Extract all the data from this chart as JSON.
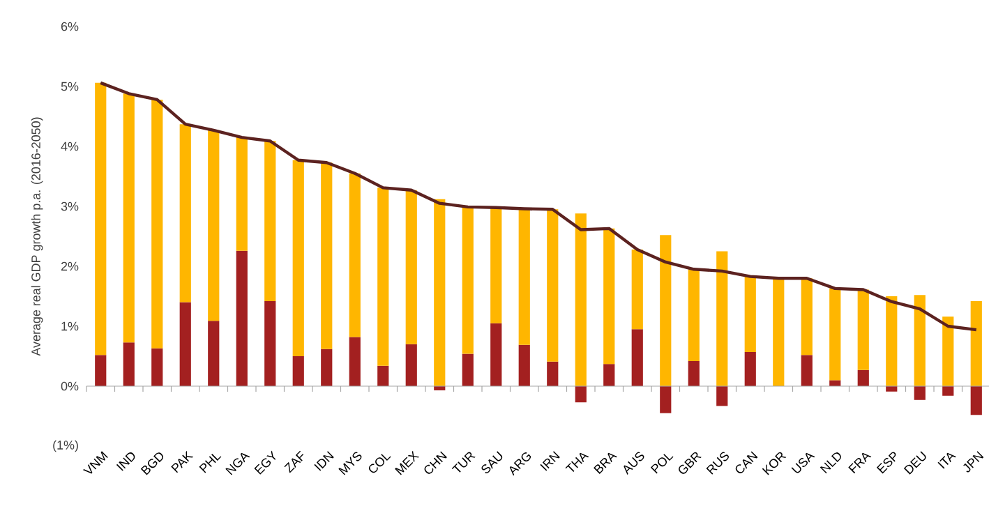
{
  "chart_data": {
    "type": "bar",
    "stacked": true,
    "ylabel": "Average real GDP growth p.a. (2016-2050)",
    "categories": [
      "VNM",
      "IND",
      "BGD",
      "PAK",
      "PHL",
      "NGA",
      "EGY",
      "ZAF",
      "IDN",
      "MYS",
      "COL",
      "MEX",
      "CHN",
      "TUR",
      "SAU",
      "ARG",
      "IRN",
      "THA",
      "BRA",
      "AUS",
      "POL",
      "GBR",
      "RUS",
      "CAN",
      "KOR",
      "USA",
      "NLD",
      "FRA",
      "ESP",
      "DEU",
      "ITA",
      "JPN"
    ],
    "series": [
      {
        "color": "#a32020",
        "values": [
          0.52,
          0.73,
          0.63,
          1.4,
          1.09,
          2.26,
          1.42,
          0.5,
          0.62,
          0.82,
          0.34,
          0.7,
          -0.07,
          0.54,
          1.05,
          0.69,
          0.41,
          -0.27,
          0.37,
          0.95,
          -0.45,
          0.42,
          -0.33,
          0.57,
          0,
          0.52,
          0.1,
          0.27,
          -0.09,
          -0.23,
          -0.16,
          -0.48
        ]
      },
      {
        "color": "#ffb600",
        "values": [
          4.54,
          4.15,
          4.15,
          2.97,
          3.18,
          1.89,
          2.67,
          3.27,
          3.11,
          2.73,
          2.97,
          2.57,
          3.12,
          2.45,
          1.93,
          2.27,
          2.54,
          2.88,
          2.26,
          1.33,
          2.52,
          1.53,
          2.25,
          1.26,
          1.8,
          1.28,
          1.53,
          1.34,
          1.5,
          1.52,
          1.16,
          1.42
        ]
      },
      {
        "type": "line",
        "color": "#5c2220",
        "values": [
          5.06,
          4.88,
          4.78,
          4.37,
          4.27,
          4.15,
          4.09,
          3.77,
          3.73,
          3.55,
          3.31,
          3.27,
          3.05,
          2.99,
          2.98,
          2.96,
          2.95,
          2.61,
          2.63,
          2.28,
          2.07,
          1.95,
          1.92,
          1.83,
          1.8,
          1.8,
          1.63,
          1.61,
          1.41,
          1.29,
          1.0,
          0.94
        ]
      }
    ],
    "ylim": [
      -1,
      6
    ],
    "yticks": [
      {
        "value": -1,
        "label": "(1%)"
      },
      {
        "value": 0,
        "label": "0%"
      },
      {
        "value": 1,
        "label": "1%"
      },
      {
        "value": 2,
        "label": "2%"
      },
      {
        "value": 3,
        "label": "3%"
      },
      {
        "value": 4,
        "label": "4%"
      },
      {
        "value": 5,
        "label": "5%"
      },
      {
        "value": 6,
        "label": "6%"
      }
    ]
  }
}
